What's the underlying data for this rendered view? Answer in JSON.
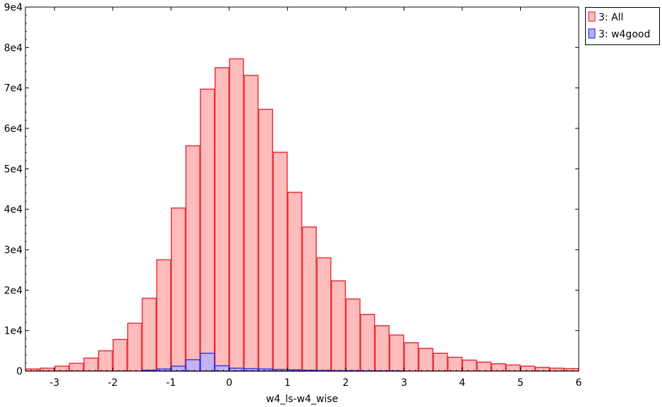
{
  "chart_data": {
    "type": "bar",
    "title": "",
    "xlabel": "w4_ls-w4_wise",
    "ylabel": "",
    "xlim": [
      -3.5,
      6
    ],
    "ylim": [
      0,
      90000
    ],
    "bin_width": 0.25,
    "x_ticks": [
      -3,
      -2,
      -1,
      0,
      1,
      2,
      3,
      4,
      5,
      6
    ],
    "x_tick_labels": [
      "-3",
      "-2",
      "-1",
      "0",
      "1",
      "2",
      "3",
      "4",
      "5",
      "6"
    ],
    "y_ticks": [
      0,
      10000,
      20000,
      30000,
      40000,
      50000,
      60000,
      70000,
      80000,
      90000
    ],
    "y_tick_labels": [
      "0",
      "1e4",
      "2e4",
      "3e4",
      "4e4",
      "5e4",
      "6e4",
      "7e4",
      "8e4",
      "9e4"
    ],
    "grid": false,
    "legend_position": "top-right, outside plot",
    "bin_left_edges": [
      -3.5,
      -3.25,
      -3.0,
      -2.75,
      -2.5,
      -2.25,
      -2.0,
      -1.75,
      -1.5,
      -1.25,
      -1.0,
      -0.75,
      -0.5,
      -0.25,
      0.0,
      0.25,
      0.5,
      0.75,
      1.0,
      1.25,
      1.5,
      1.75,
      2.0,
      2.25,
      2.5,
      2.75,
      3.0,
      3.25,
      3.5,
      3.75,
      4.0,
      4.25,
      4.5,
      4.75,
      5.0,
      5.25,
      5.5,
      5.75
    ],
    "series": [
      {
        "name": "3: All",
        "fill": "#ffbcbc",
        "stroke": "#e8323c",
        "values": [
          500,
          700,
          1200,
          1900,
          3200,
          5000,
          7800,
          11800,
          18000,
          27500,
          40300,
          55700,
          69700,
          75000,
          77200,
          73100,
          64700,
          54100,
          44200,
          35600,
          28000,
          22300,
          17800,
          14000,
          11200,
          8900,
          7000,
          5600,
          4400,
          3400,
          2700,
          2200,
          1800,
          1500,
          1200,
          900,
          700,
          600
        ]
      },
      {
        "name": "3: w4good",
        "fill": "#b0b0ff",
        "stroke": "#3a3aee",
        "values": [
          0,
          0,
          0,
          0,
          0,
          0,
          0,
          0,
          200,
          500,
          1200,
          2800,
          4400,
          1300,
          700,
          600,
          500,
          400,
          300,
          200,
          150,
          100,
          100,
          50,
          50,
          50,
          0,
          0,
          0,
          0,
          0,
          0,
          0,
          0,
          0,
          0,
          0,
          0
        ]
      }
    ]
  }
}
